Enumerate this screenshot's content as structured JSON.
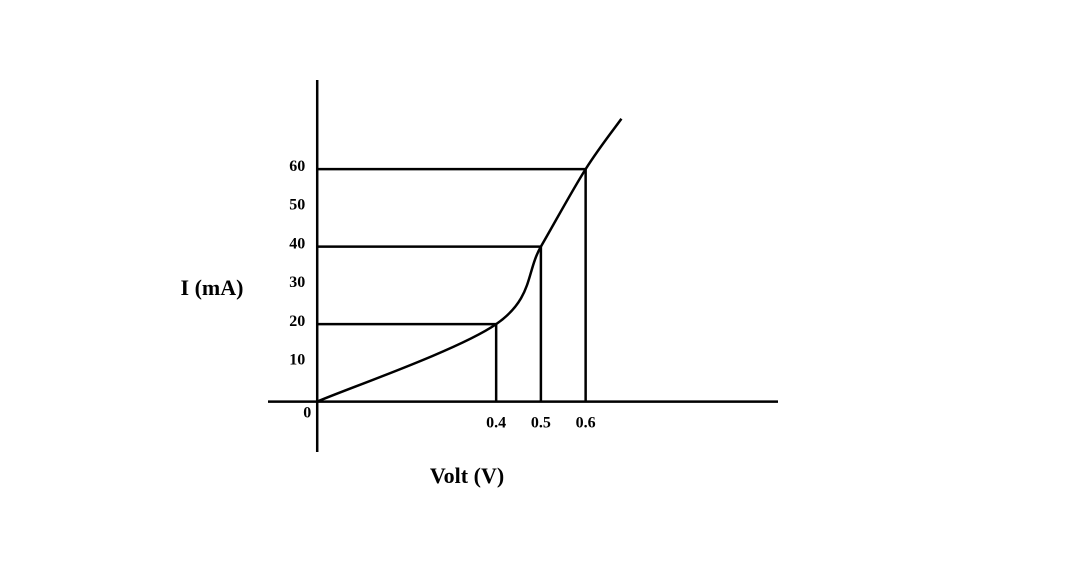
{
  "chart_data": {
    "type": "line",
    "x_label": "Volt (V)",
    "y_label": "I (mA)",
    "x": [
      0,
      0.4,
      0.5,
      0.6,
      0.68
    ],
    "values": [
      0,
      20,
      40,
      60,
      73
    ],
    "color": "#000000",
    "xlim": [
      -0.11,
      1.03
    ],
    "xticks": [
      0.4,
      0.5,
      0.6
    ],
    "ylim": [
      -13,
      83
    ],
    "yticks": [
      0,
      10,
      20,
      30,
      40,
      50,
      60
    ],
    "grid": false
  }
}
